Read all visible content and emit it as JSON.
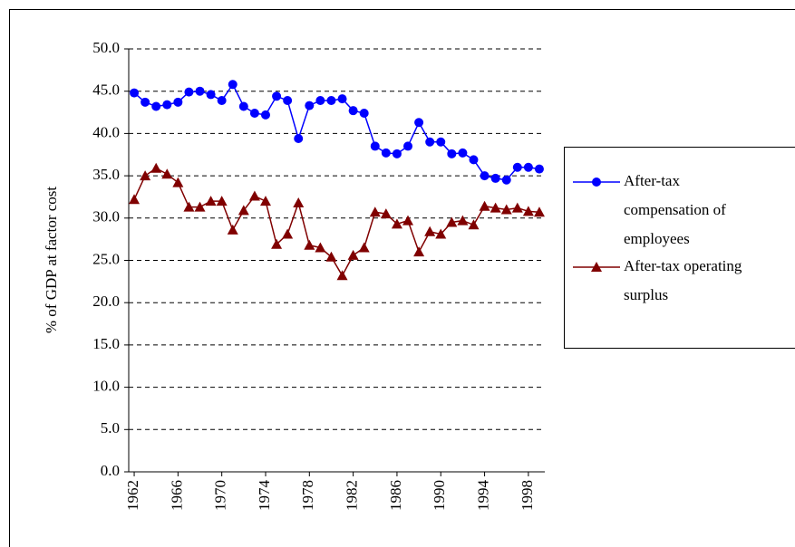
{
  "chart_data": {
    "type": "line",
    "y_label": "% of GDP at factor cost",
    "x": [
      1962,
      1963,
      1964,
      1965,
      1966,
      1967,
      1968,
      1969,
      1970,
      1971,
      1972,
      1973,
      1974,
      1975,
      1976,
      1977,
      1978,
      1979,
      1980,
      1981,
      1982,
      1983,
      1984,
      1985,
      1986,
      1987,
      1988,
      1989,
      1990,
      1991,
      1992,
      1993,
      1994,
      1995,
      1996,
      1997,
      1998,
      1999
    ],
    "xlim": [
      1961.5,
      1999.5
    ],
    "xticks": [
      1962,
      1966,
      1970,
      1974,
      1978,
      1982,
      1986,
      1990,
      1994,
      1998
    ],
    "ylim": [
      0,
      50
    ],
    "yticks": [
      {
        "value": 0,
        "label": "0.0"
      },
      {
        "value": 5,
        "label": "5.0"
      },
      {
        "value": 10,
        "label": "10.0"
      },
      {
        "value": 15,
        "label": "15.0"
      },
      {
        "value": 20,
        "label": "20.0"
      },
      {
        "value": 25,
        "label": "25.0"
      },
      {
        "value": 30,
        "label": "30.0"
      },
      {
        "value": 35,
        "label": "35.0"
      },
      {
        "value": 40,
        "label": "40.0"
      },
      {
        "value": 45,
        "label": "45.0"
      },
      {
        "value": 50,
        "label": "50.0"
      }
    ],
    "grid": true,
    "series": [
      {
        "name": "After-tax compensation of employees",
        "color": "#0000ff",
        "marker": "circle",
        "values": [
          44.8,
          43.7,
          43.2,
          43.4,
          43.7,
          44.9,
          45.0,
          44.6,
          43.9,
          45.8,
          43.2,
          42.4,
          42.2,
          44.4,
          43.9,
          39.4,
          43.3,
          43.9,
          43.9,
          44.1,
          42.7,
          42.4,
          38.5,
          37.7,
          37.6,
          38.5,
          41.3,
          39.0,
          39.0,
          37.6,
          37.7,
          36.9,
          35.0,
          34.7,
          34.5,
          36.0,
          36.0,
          35.8
        ]
      },
      {
        "name": "After-tax operating surplus",
        "color": "#800000",
        "marker": "triangle",
        "values": [
          32.2,
          35.0,
          35.9,
          35.2,
          34.2,
          31.3,
          31.3,
          32.0,
          32.0,
          28.6,
          30.9,
          32.6,
          32.0,
          26.9,
          28.1,
          31.8,
          26.8,
          26.5,
          25.4,
          23.2,
          25.6,
          26.5,
          30.7,
          30.5,
          29.3,
          29.7,
          26.0,
          28.4,
          28.1,
          29.5,
          29.7,
          29.2,
          31.4,
          31.2,
          31.0,
          31.2,
          30.8,
          30.7
        ]
      }
    ]
  }
}
